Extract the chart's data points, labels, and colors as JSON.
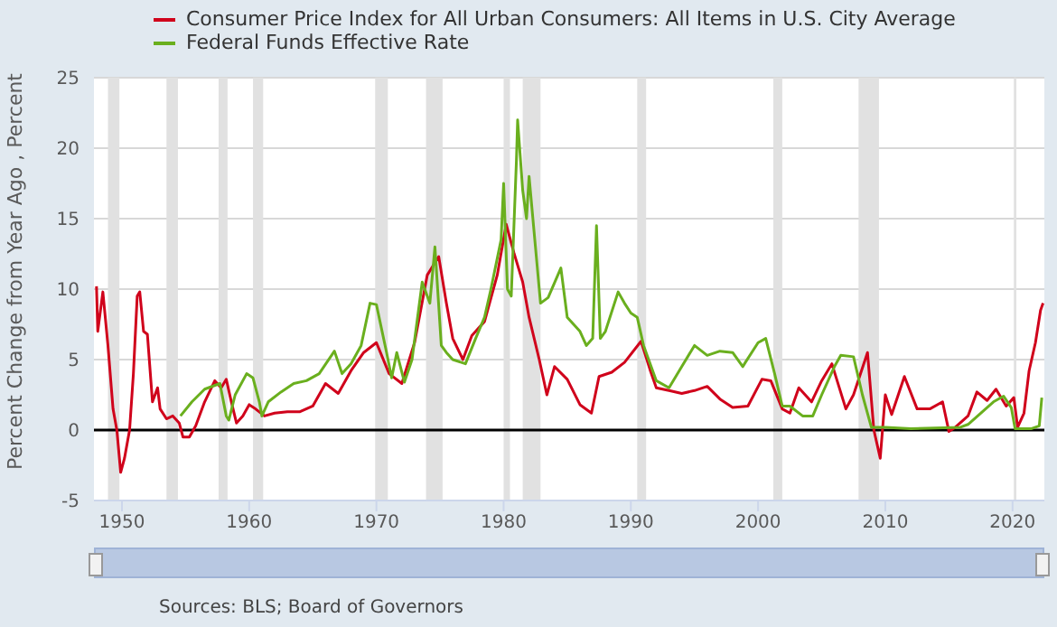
{
  "chart_data": {
    "type": "line",
    "ylabel": "Percent Change from Year Ago , Percent",
    "annotations": [
      "Sources: BLS; Board of Governors"
    ],
    "xlim": [
      1947.8,
      2022.5
    ],
    "xticks": [
      1950,
      1960,
      1970,
      1980,
      1990,
      2000,
      2010,
      2020
    ],
    "ylim": [
      -5,
      25
    ],
    "yticks": [
      -5,
      0,
      5,
      10,
      15,
      20,
      25
    ],
    "grid": "y",
    "legend": "top left",
    "marker": "none",
    "line_style": "solid",
    "ref_lines": [
      {
        "axis": "y",
        "value": 0,
        "color": "#000000"
      }
    ],
    "bands": [
      {
        "axis": "x",
        "from": 1948.9,
        "to": 1949.8,
        "color": "#e1e1e1"
      },
      {
        "axis": "x",
        "from": 1953.5,
        "to": 1954.4,
        "color": "#e1e1e1"
      },
      {
        "axis": "x",
        "from": 1957.6,
        "to": 1958.3,
        "color": "#e1e1e1"
      },
      {
        "axis": "x",
        "from": 1960.3,
        "to": 1961.1,
        "color": "#e1e1e1"
      },
      {
        "axis": "x",
        "from": 1969.9,
        "to": 1970.9,
        "color": "#e1e1e1"
      },
      {
        "axis": "x",
        "from": 1973.9,
        "to": 1975.2,
        "color": "#e1e1e1"
      },
      {
        "axis": "x",
        "from": 1980.0,
        "to": 1980.5,
        "color": "#e1e1e1"
      },
      {
        "axis": "x",
        "from": 1981.5,
        "to": 1982.9,
        "color": "#e1e1e1"
      },
      {
        "axis": "x",
        "from": 1990.5,
        "to": 1991.2,
        "color": "#e1e1e1"
      },
      {
        "axis": "x",
        "from": 2001.2,
        "to": 2001.9,
        "color": "#e1e1e1"
      },
      {
        "axis": "x",
        "from": 2007.9,
        "to": 2009.5,
        "color": "#e1e1e1"
      },
      {
        "axis": "x",
        "from": 2020.1,
        "to": 2020.3,
        "color": "#e1e1e1"
      }
    ],
    "series": [
      {
        "name": "Consumer Price Index for All Urban Consumers: All Items in U.S. City Average",
        "color": "#d0021b",
        "x": [
          1948.0,
          1948.1,
          1948.5,
          1948.9,
          1949.3,
          1949.6,
          1949.9,
          1950.2,
          1950.6,
          1950.9,
          1951.2,
          1951.4,
          1951.7,
          1952.0,
          1952.4,
          1952.8,
          1953.0,
          1953.5,
          1954.0,
          1954.5,
          1954.8,
          1955.3,
          1955.8,
          1956.5,
          1957.3,
          1957.8,
          1958.2,
          1958.6,
          1959.0,
          1959.5,
          1960.0,
          1960.5,
          1961.2,
          1962,
          1963,
          1964,
          1965,
          1966,
          1967,
          1968,
          1969,
          1970,
          1971,
          1972,
          1973,
          1974,
          1974.9,
          1975.5,
          1976,
          1976.8,
          1977.5,
          1978.5,
          1979.5,
          1980.2,
          1980.8,
          1981.5,
          1982,
          1982.8,
          1983.4,
          1984,
          1985,
          1986,
          1986.9,
          1987.5,
          1988.5,
          1989.5,
          1990.8,
          1991.5,
          1992,
          1993,
          1994,
          1995,
          1996,
          1997,
          1998,
          1999.2,
          2000.3,
          2001,
          2001.9,
          2002.5,
          2003.2,
          2004.2,
          2005,
          2005.8,
          2006.9,
          2007.5,
          2008.6,
          2009.1,
          2009.6,
          2010,
          2010.5,
          2011.5,
          2012.5,
          2013.5,
          2014.5,
          2015,
          2015.5,
          2016.5,
          2017.2,
          2018,
          2018.7,
          2019.5,
          2020.1,
          2020.4,
          2020.9,
          2021.3,
          2021.8,
          2022.2,
          2022.4
        ],
        "values": [
          10.2,
          7,
          9.8,
          6,
          1.5,
          0,
          -3,
          -2,
          0,
          4,
          9.5,
          9.8,
          7,
          6.8,
          2,
          3,
          1.5,
          0.8,
          1,
          0.5,
          -0.5,
          -0.5,
          0.3,
          2,
          3.5,
          3,
          3.6,
          2,
          0.5,
          1,
          1.8,
          1.5,
          1,
          1.2,
          1.3,
          1.3,
          1.7,
          3.3,
          2.6,
          4.2,
          5.5,
          6.2,
          4,
          3.3,
          6.2,
          11,
          12.3,
          9,
          6.5,
          5,
          6.7,
          7.7,
          11,
          14.6,
          12.6,
          10.5,
          8,
          5,
          2.5,
          4.5,
          3.6,
          1.8,
          1.2,
          3.8,
          4.1,
          4.8,
          6.3,
          4.3,
          3,
          2.8,
          2.6,
          2.8,
          3.1,
          2.2,
          1.6,
          1.7,
          3.6,
          3.5,
          1.5,
          1.2,
          3,
          2,
          3.5,
          4.7,
          1.5,
          2.5,
          5.5,
          0,
          -2,
          2.5,
          1.1,
          3.8,
          1.5,
          1.5,
          2,
          -0.1,
          0.2,
          1,
          2.7,
          2.1,
          2.9,
          1.7,
          2.3,
          0.2,
          1.2,
          4.2,
          6.2,
          8.5,
          9
        ]
      },
      {
        "name": "Federal Funds Effective Rate",
        "color": "#6aaf1e",
        "x": [
          1954.6,
          1955.5,
          1956.5,
          1957.7,
          1958.2,
          1958.4,
          1958.9,
          1959.8,
          1960.3,
          1960.8,
          1961.0,
          1961.5,
          1962.5,
          1963.5,
          1964.5,
          1965.5,
          1966.7,
          1967.3,
          1968,
          1968.8,
          1969.5,
          1970,
          1970.8,
          1971.2,
          1971.6,
          1972.2,
          1972.8,
          1973.6,
          1974.2,
          1974.6,
          1975.1,
          1975.5,
          1976,
          1977,
          1977.8,
          1978.5,
          1979,
          1979.8,
          1980.0,
          1980.3,
          1980.6,
          1981.0,
          1981.1,
          1981.5,
          1981.8,
          1982.0,
          1982.5,
          1982.9,
          1983.5,
          1984.5,
          1985,
          1986,
          1986.5,
          1987,
          1987.3,
          1987.6,
          1988,
          1989,
          1989.5,
          1990,
          1990.5,
          1991,
          1992,
          1993,
          1994,
          1995,
          1996,
          1997,
          1998,
          1998.8,
          1999,
          2000,
          2000.6,
          2001.3,
          2001.9,
          2002.5,
          2003.5,
          2004.3,
          2005,
          2006,
          2006.5,
          2007.5,
          2008.2,
          2008.9,
          2010,
          2012,
          2015.9,
          2016.5,
          2017.5,
          2018.5,
          2019.3,
          2019.9,
          2020.2,
          2021.5,
          2022.1,
          2022.3
        ],
        "values": [
          1,
          2,
          2.9,
          3.3,
          1,
          0.7,
          2.5,
          4,
          3.7,
          2,
          1,
          2,
          2.7,
          3.3,
          3.5,
          4,
          5.6,
          4,
          4.7,
          6,
          9,
          8.9,
          5.5,
          3.7,
          5.5,
          3.4,
          5,
          10.5,
          9,
          13,
          6,
          5.5,
          5,
          4.7,
          6.5,
          8,
          10,
          13.5,
          17.5,
          10,
          9.5,
          19,
          22,
          17,
          15,
          18,
          13,
          9,
          9.4,
          11.5,
          8,
          7,
          6,
          6.5,
          14.5,
          6.5,
          7,
          9.8,
          9,
          8.3,
          8,
          6,
          3.5,
          3,
          4.5,
          6,
          5.3,
          5.6,
          5.5,
          4.5,
          4.8,
          6.2,
          6.5,
          4,
          1.7,
          1.7,
          1,
          1,
          2.5,
          4.5,
          5.3,
          5.2,
          2.5,
          0.2,
          0.2,
          0.1,
          0.2,
          0.4,
          1.2,
          2,
          2.4,
          1.6,
          0.1,
          0.1,
          0.3,
          2.3
        ]
      }
    ]
  }
}
